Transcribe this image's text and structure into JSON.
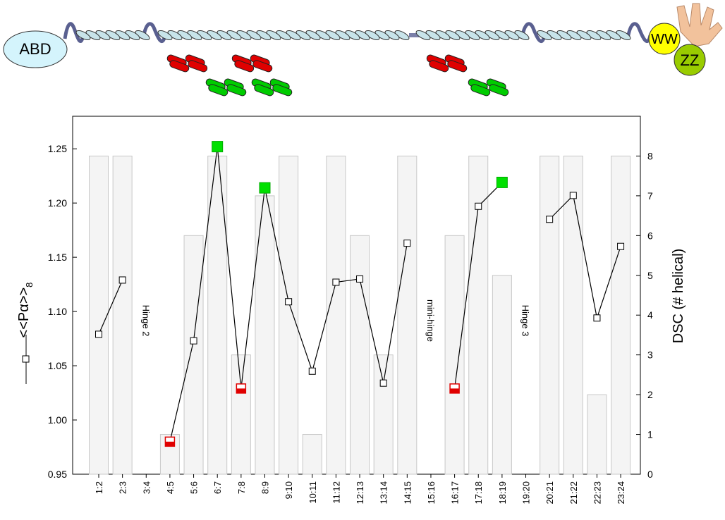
{
  "diagram": {
    "labels": [
      "ABD",
      "WW",
      "ZZ"
    ]
  },
  "chart_data": {
    "type": "bar-line",
    "categories": [
      "1:2",
      "2:3",
      "3:4",
      "4:5",
      "5:6",
      "6:7",
      "7:8",
      "8:9",
      "9:10",
      "10:11",
      "11:12",
      "12:13",
      "13:14",
      "14:15",
      "15:16",
      "16:17",
      "17:18",
      "18:19",
      "19:20",
      "20:21",
      "21:22",
      "22:23",
      "23:24"
    ],
    "y_label": "<<Pα>>",
    "y_label_subscript": "8",
    "y2_label": "DSC (# helical)",
    "ylim": [
      0.95,
      1.28
    ],
    "yticks": [
      0.95,
      {
        "value": 1.0,
        "label": "1.00"
      },
      1.05,
      {
        "value": 1.1,
        "label": "1.10"
      },
      1.15,
      {
        "value": 1.2,
        "label": "1.20"
      },
      1.25
    ],
    "y2lim": [
      0,
      9
    ],
    "y2ticks": [
      0,
      1,
      2,
      3,
      4,
      5,
      6,
      7,
      8
    ],
    "series": [
      {
        "type": "bar",
        "axis": "y2",
        "color": "#f4f4f4",
        "values": [
          8,
          8,
          0,
          1,
          6,
          8,
          3,
          7,
          8,
          1,
          8,
          6,
          3,
          8,
          0,
          6,
          8,
          5,
          0,
          8,
          8,
          2,
          8
        ]
      },
      {
        "type": "line",
        "color": "#000000",
        "values": [
          1.079,
          1.129,
          null,
          0.98,
          1.073,
          1.252,
          1.029,
          1.214,
          1.109,
          1.045,
          1.127,
          1.13,
          1.034,
          1.163,
          null,
          1.029,
          1.197,
          1.219,
          null,
          1.185,
          1.207,
          1.094,
          1.16
        ],
        "marker_colors": [
          null,
          null,
          null,
          "#e00000",
          null,
          "#00e000",
          "#e00000",
          "#00e000",
          null,
          null,
          null,
          null,
          null,
          null,
          null,
          "#e00000",
          null,
          "#00e000",
          null,
          null,
          null,
          null,
          null
        ]
      }
    ],
    "annotations": [
      {
        "text": "Hinge 2",
        "category": "3:4"
      },
      {
        "text": "mini-hinge",
        "category": "15:16"
      },
      {
        "text": "Hinge 3",
        "category": "19:20"
      }
    ]
  }
}
